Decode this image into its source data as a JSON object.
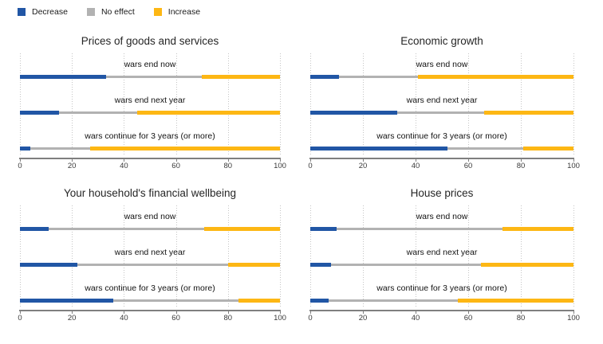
{
  "legend": [
    {
      "label": "Decrease",
      "color": "#2156a5"
    },
    {
      "label": "No effect",
      "color": "#b2b2b2"
    },
    {
      "label": "Increase",
      "color": "#fdb714"
    }
  ],
  "chart_data": {
    "type": "bar",
    "stacked": true,
    "orientation": "horizontal",
    "series_names": [
      "Decrease",
      "No effect",
      "Increase"
    ],
    "categories": [
      "wars end now",
      "wars end next year",
      "wars continue for 3 years (or more)"
    ],
    "xlim": [
      0,
      100
    ],
    "x_ticks": [
      0,
      20,
      40,
      60,
      80,
      100
    ],
    "grid": "dotted-vertical",
    "legend_position": "top-left",
    "panels": [
      {
        "title": "Prices of goods and services",
        "rows": [
          {
            "category": "wars end now",
            "values": [
              33,
              37,
              30
            ]
          },
          {
            "category": "wars end next year",
            "values": [
              15,
              30,
              55
            ]
          },
          {
            "category": "wars continue for 3 years (or more)",
            "values": [
              4,
              23,
              73
            ]
          }
        ]
      },
      {
        "title": "Economic growth",
        "rows": [
          {
            "category": "wars end now",
            "values": [
              11,
              30,
              59
            ]
          },
          {
            "category": "wars end next year",
            "values": [
              33,
              33,
              34
            ]
          },
          {
            "category": "wars continue for 3 years (or more)",
            "values": [
              52,
              29,
              19
            ]
          }
        ]
      },
      {
        "title": "Your household's financial wellbeing",
        "rows": [
          {
            "category": "wars end now",
            "values": [
              11,
              60,
              29
            ]
          },
          {
            "category": "wars end next year",
            "values": [
              22,
              58,
              20
            ]
          },
          {
            "category": "wars continue for 3 years (or more)",
            "values": [
              36,
              48,
              16
            ]
          }
        ]
      },
      {
        "title": "House prices",
        "rows": [
          {
            "category": "wars end now",
            "values": [
              10,
              63,
              27
            ]
          },
          {
            "category": "wars end next year",
            "values": [
              8,
              57,
              35
            ]
          },
          {
            "category": "wars continue for 3 years (or more)",
            "values": [
              7,
              49,
              44
            ]
          }
        ]
      }
    ]
  }
}
